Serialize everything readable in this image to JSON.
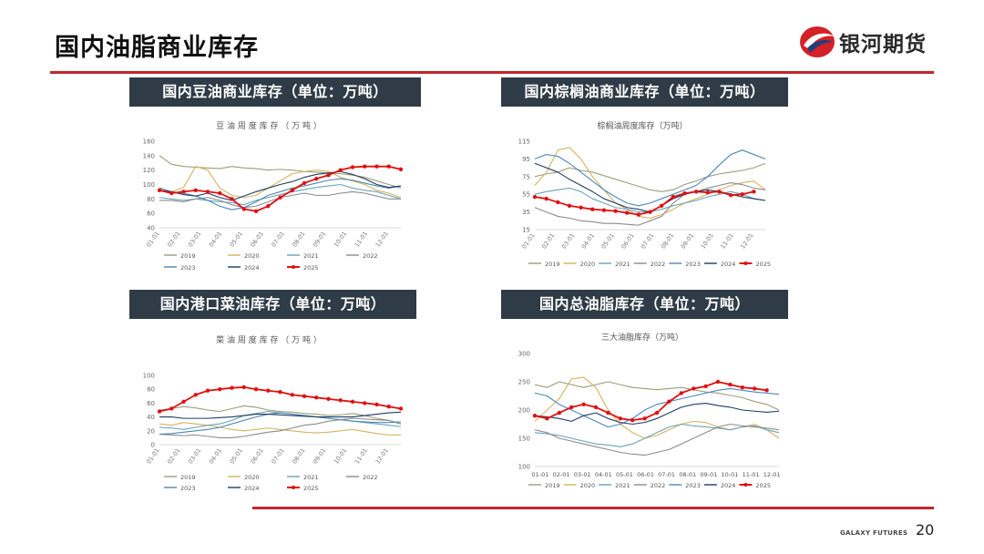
{
  "page": {
    "title": "国内油脂商业库存",
    "page_number": "20",
    "footer_brand": "GALAXY FUTURES"
  },
  "logo": {
    "text": "银河期货",
    "colors": {
      "red": "#d42027",
      "navy": "#1d3f7a"
    }
  },
  "accent_color": "#c0262d",
  "header_color": "#2f3c48",
  "panels": [
    {
      "header": "国内豆油商业库存（单位：万吨）"
    },
    {
      "header": "国内棕榈油商业库存（单位：万吨）"
    },
    {
      "header": "国内港口菜油库存（单位：万吨）"
    },
    {
      "header": "国内总油脂库存（单位：万吨）"
    }
  ],
  "legend_colors": {
    "2019": "#9c9c7c",
    "2020": "#d6b25e",
    "2021": "#6aa3b8",
    "2022": "#8c8c8c",
    "2023": "#4b87b5",
    "2024": "#1f3d62",
    "2025": "#e01010"
  },
  "chart_data": [
    {
      "type": "line",
      "title": "豆 油 周 度 库 存 （ 万 吨 ）",
      "ylim": [
        40,
        160
      ],
      "yticks": [
        "40",
        "60",
        "80",
        "100",
        "120",
        "140",
        "160"
      ],
      "xticks": [
        "01-01",
        "02-01",
        "03-01",
        "04-01",
        "05-01",
        "06-01",
        "07-01",
        "08-01",
        "09-01",
        "10-01",
        "11-01",
        "12-01"
      ],
      "legend": [
        "2019",
        "2020",
        "2021",
        "2022",
        "2023",
        "2024",
        "2025"
      ],
      "legend_rows": [
        [
          "2019",
          "2020",
          "2021",
          "2022"
        ],
        [
          "2023",
          "2024",
          "2025"
        ]
      ],
      "series": [
        {
          "name": "2019",
          "values": [
            140,
            128,
            125,
            124,
            123,
            122,
            125,
            123,
            122,
            120,
            121,
            120,
            118,
            117,
            116,
            115,
            113,
            110,
            105,
            100,
            95
          ]
        },
        {
          "name": "2020",
          "values": [
            95,
            90,
            96,
            125,
            120,
            95,
            85,
            82,
            85,
            95,
            105,
            115,
            118,
            120,
            118,
            110,
            105,
            100,
            92,
            88,
            82
          ]
        },
        {
          "name": "2021",
          "values": [
            82,
            80,
            78,
            80,
            78,
            76,
            75,
            72,
            78,
            82,
            86,
            90,
            93,
            96,
            98,
            100,
            95,
            92,
            90,
            85,
            80
          ]
        },
        {
          "name": "2022",
          "values": [
            78,
            78,
            76,
            80,
            82,
            78,
            72,
            68,
            70,
            76,
            82,
            85,
            88,
            85,
            85,
            88,
            90,
            88,
            84,
            80,
            80
          ]
        },
        {
          "name": "2023",
          "values": [
            95,
            90,
            88,
            84,
            78,
            70,
            65,
            68,
            76,
            85,
            90,
            95,
            98,
            102,
            106,
            108,
            106,
            102,
            98,
            95,
            98
          ]
        },
        {
          "name": "2024",
          "values": [
            92,
            90,
            86,
            84,
            88,
            82,
            78,
            84,
            90,
            95,
            100,
            104,
            110,
            114,
            116,
            118,
            114,
            108,
            100,
            96,
            98
          ]
        },
        {
          "name": "2025",
          "values": [
            92,
            88,
            90,
            92,
            90,
            88,
            80,
            66,
            63,
            70,
            82,
            92,
            102,
            108,
            113,
            120,
            124,
            125,
            125,
            125,
            121
          ]
        }
      ]
    },
    {
      "type": "line",
      "title": "棕榈油周度库存（万吨）",
      "ylim": [
        15,
        115
      ],
      "yticks": [
        "15",
        "35",
        "55",
        "75",
        "95",
        "115"
      ],
      "xticks": [
        "01-01",
        "02-01",
        "03-01",
        "04-01",
        "05-01",
        "06-01",
        "07-01",
        "08-01",
        "09-01",
        "10-01",
        "11-01",
        "12-01"
      ],
      "legend": [
        "2019",
        "2020",
        "2021",
        "2022",
        "2023",
        "2024",
        "2025"
      ],
      "legend_rows": [
        [
          "2019",
          "2020",
          "2021",
          "2022",
          "2023",
          "2024",
          "2025"
        ]
      ],
      "series": [
        {
          "name": "2019",
          "values": [
            75,
            78,
            80,
            85,
            82,
            80,
            76,
            72,
            68,
            64,
            60,
            58,
            60,
            66,
            70,
            75,
            78,
            80,
            82,
            85,
            90
          ]
        },
        {
          "name": "2020",
          "values": [
            65,
            80,
            105,
            108,
            95,
            75,
            60,
            45,
            38,
            30,
            28,
            32,
            38,
            45,
            50,
            55,
            60,
            65,
            68,
            70,
            60
          ]
        },
        {
          "name": "2021",
          "values": [
            55,
            58,
            60,
            62,
            58,
            50,
            45,
            40,
            38,
            35,
            35,
            38,
            42,
            45,
            48,
            52,
            55,
            58,
            55,
            50,
            48
          ]
        },
        {
          "name": "2022",
          "values": [
            40,
            35,
            30,
            28,
            25,
            24,
            22,
            22,
            21,
            20,
            25,
            30,
            45,
            55,
            58,
            62,
            65,
            68,
            66,
            62,
            60
          ]
        },
        {
          "name": "2023",
          "values": [
            95,
            100,
            98,
            90,
            80,
            70,
            60,
            52,
            45,
            42,
            45,
            50,
            55,
            60,
            65,
            75,
            88,
            100,
            105,
            100,
            95
          ]
        },
        {
          "name": "2024",
          "values": [
            90,
            85,
            80,
            72,
            65,
            58,
            50,
            45,
            40,
            38,
            35,
            42,
            50,
            55,
            58,
            60,
            58,
            55,
            52,
            50,
            48
          ]
        },
        {
          "name": "2025",
          "values": [
            52,
            50,
            46,
            42,
            40,
            38,
            37,
            36,
            34,
            32,
            35,
            42,
            52,
            56,
            58,
            57,
            58,
            54,
            55,
            58
          ]
        }
      ]
    },
    {
      "type": "line",
      "title": "菜 油 周 度 库 存 （ 万 吨 ）",
      "ylim": [
        0,
        100
      ],
      "yticks": [
        "0",
        "20",
        "40",
        "60",
        "80",
        "100"
      ],
      "xticks": [
        "01-01",
        "02-01",
        "03-01",
        "04-01",
        "05-01",
        "06-01",
        "07-01",
        "08-01",
        "09-01",
        "10-01",
        "11-01",
        "12-01"
      ],
      "legend": [
        "2019",
        "2020",
        "2021",
        "2022",
        "2023",
        "2024",
        "2025"
      ],
      "legend_rows": [
        [
          "2019",
          "2020",
          "2021",
          "2022"
        ],
        [
          "2023",
          "2024",
          "2025"
        ]
      ],
      "series": [
        {
          "name": "2019",
          "values": [
            50,
            52,
            55,
            53,
            50,
            48,
            52,
            56,
            54,
            50,
            48,
            47,
            45,
            44,
            42,
            43,
            45,
            42,
            38,
            35,
            30
          ]
        },
        {
          "name": "2020",
          "values": [
            30,
            28,
            32,
            30,
            28,
            25,
            22,
            20,
            22,
            24,
            22,
            20,
            18,
            17,
            18,
            20,
            22,
            19,
            16,
            14,
            14
          ]
        },
        {
          "name": "2021",
          "values": [
            25,
            24,
            22,
            25,
            28,
            30,
            35,
            42,
            45,
            48,
            46,
            44,
            42,
            40,
            38,
            36,
            34,
            32,
            30,
            28,
            26
          ]
        },
        {
          "name": "2022",
          "values": [
            15,
            14,
            13,
            14,
            12,
            10,
            10,
            12,
            15,
            18,
            20,
            24,
            28,
            30,
            34,
            36,
            38,
            37,
            36,
            35,
            30
          ]
        },
        {
          "name": "2023",
          "values": [
            15,
            16,
            18,
            20,
            22,
            25,
            30,
            35,
            40,
            44,
            46,
            44,
            42,
            40,
            38,
            36,
            34,
            33,
            32,
            32,
            33
          ]
        },
        {
          "name": "2024",
          "values": [
            40,
            40,
            38,
            38,
            38,
            39,
            40,
            42,
            44,
            44,
            43,
            42,
            41,
            40,
            40,
            40,
            40,
            42,
            44,
            46,
            47
          ]
        },
        {
          "name": "2025",
          "values": [
            48,
            52,
            62,
            72,
            78,
            80,
            82,
            83,
            80,
            78,
            76,
            72,
            70,
            68,
            66,
            64,
            62,
            60,
            58,
            55,
            52
          ]
        }
      ]
    },
    {
      "type": "line",
      "title": "三大油脂库存（万吨）",
      "ylim": [
        100,
        300
      ],
      "yticks": [
        "100",
        "150",
        "200",
        "250",
        "300"
      ],
      "xticks": [
        "01-01",
        "02-01",
        "03-01",
        "04-01",
        "05-01",
        "06-01",
        "07-01",
        "08-01",
        "09-01",
        "10-01",
        "11-01",
        "12-01"
      ],
      "legend": [
        "2019",
        "2020",
        "2021",
        "2022",
        "2023",
        "2024",
        "2025"
      ],
      "legend_rows": [
        [
          "2019",
          "2020",
          "2021",
          "2022",
          "2023",
          "2024",
          "2025"
        ]
      ],
      "series": [
        {
          "name": "2019",
          "values": [
            245,
            240,
            250,
            245,
            240,
            245,
            250,
            245,
            240,
            238,
            236,
            238,
            240,
            236,
            232,
            230,
            226,
            222,
            215,
            210,
            200
          ]
        },
        {
          "name": "2020",
          "values": [
            180,
            200,
            220,
            255,
            258,
            240,
            200,
            175,
            160,
            150,
            155,
            165,
            175,
            180,
            178,
            170,
            165,
            170,
            175,
            165,
            150
          ]
        },
        {
          "name": "2021",
          "values": [
            160,
            158,
            155,
            150,
            145,
            140,
            138,
            135,
            140,
            150,
            160,
            170,
            175,
            172,
            170,
            168,
            165,
            170,
            172,
            165,
            160
          ]
        },
        {
          "name": "2022",
          "values": [
            165,
            160,
            150,
            145,
            140,
            135,
            130,
            125,
            122,
            120,
            125,
            130,
            140,
            150,
            160,
            170,
            175,
            172,
            170,
            168,
            165
          ]
        },
        {
          "name": "2023",
          "values": [
            230,
            225,
            210,
            200,
            190,
            180,
            170,
            175,
            185,
            200,
            210,
            215,
            220,
            225,
            230,
            235,
            238,
            235,
            232,
            230,
            228
          ]
        },
        {
          "name": "2024",
          "values": [
            190,
            188,
            185,
            180,
            190,
            195,
            185,
            178,
            175,
            178,
            185,
            195,
            205,
            210,
            212,
            208,
            205,
            200,
            198,
            196,
            198
          ]
        },
        {
          "name": "2025",
          "values": [
            190,
            185,
            195,
            205,
            210,
            205,
            195,
            185,
            182,
            185,
            195,
            215,
            230,
            238,
            242,
            250,
            245,
            240,
            238,
            235
          ]
        }
      ]
    }
  ]
}
